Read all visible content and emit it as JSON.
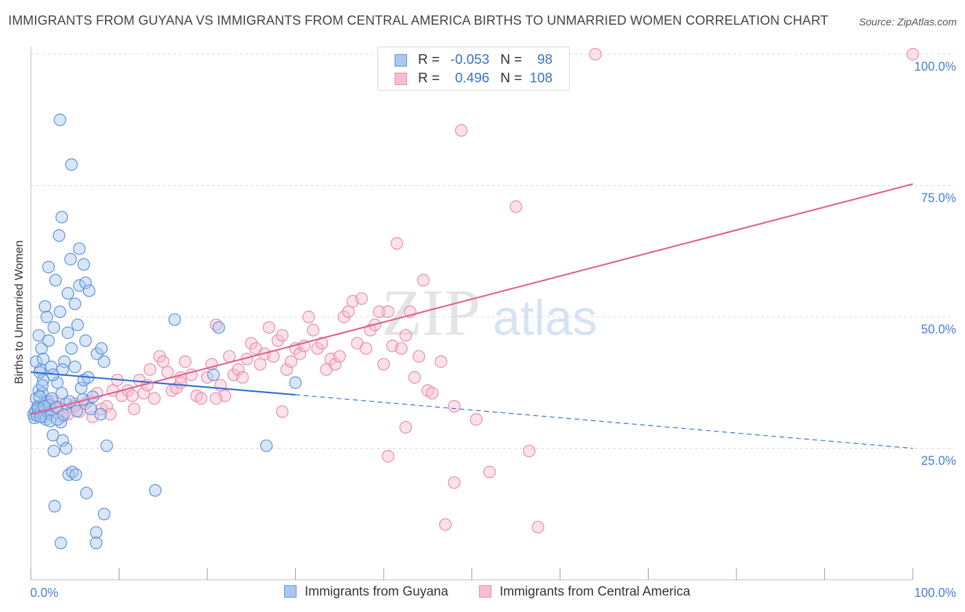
{
  "header": {
    "title": "IMMIGRANTS FROM GUYANA VS IMMIGRANTS FROM CENTRAL AMERICA BIRTHS TO UNMARRIED WOMEN CORRELATION CHART",
    "source": "Source: ZipAtlas.com"
  },
  "watermark": {
    "part1": "ZIP",
    "part2": "atlas"
  },
  "colors": {
    "guyana_fill": "#a9c8f0",
    "guyana_stroke": "#5b8fd8",
    "guyana_line": "#2f6fcf",
    "central_fill": "#f6bfd0",
    "central_stroke": "#e88aa8",
    "central_line": "#e0608a",
    "tick_text": "#4a7fd0",
    "grid": "#d8d8d8"
  },
  "legend": {
    "rows": [
      {
        "r_label": "R =",
        "r_value": "-0.053",
        "n_label": "N =",
        "n_value": "98"
      },
      {
        "r_label": "R =",
        "r_value": "0.496",
        "n_label": "N =",
        "n_value": "108"
      }
    ]
  },
  "bottom_legend": {
    "guyana": "Immigrants from Guyana",
    "central": "Immigrants from Central America"
  },
  "chart_data": {
    "type": "scatter",
    "title": "IMMIGRANTS FROM GUYANA VS IMMIGRANTS FROM CENTRAL AMERICA BIRTHS TO UNMARRIED WOMEN CORRELATION CHART",
    "xlabel": "",
    "ylabel": "Births to Unmarried Women",
    "xlim": [
      0,
      100
    ],
    "ylim": [
      0,
      100
    ],
    "x_tick_labels": [
      "0.0%",
      "100.0%"
    ],
    "y_ticks": [
      25,
      50,
      75,
      100
    ],
    "y_tick_labels": [
      "25.0%",
      "50.0%",
      "75.0%",
      "100.0%"
    ],
    "grid": "horizontal dashed",
    "legend_placement": "top-center",
    "series": [
      {
        "name": "Immigrants from Guyana",
        "R": -0.053,
        "N": 98,
        "trend": {
          "x": [
            0,
            30,
            100
          ],
          "y": [
            39.5,
            35.2,
            25.0
          ],
          "solid_until": 30
        },
        "points": [
          [
            0.3,
            31.5
          ],
          [
            0.5,
            32.0
          ],
          [
            0.6,
            34.5
          ],
          [
            0.8,
            33.0
          ],
          [
            0.9,
            36.0
          ],
          [
            1.0,
            31.8
          ],
          [
            1.1,
            40.0
          ],
          [
            1.2,
            32.5
          ],
          [
            1.3,
            35.5
          ],
          [
            1.4,
            38.0
          ],
          [
            0.4,
            30.8
          ],
          [
            0.7,
            31.2
          ],
          [
            1.5,
            31.0
          ],
          [
            1.6,
            33.8
          ],
          [
            1.7,
            30.5
          ],
          [
            1.8,
            32.2
          ],
          [
            1.9,
            34.0
          ],
          [
            2.0,
            31.6
          ],
          [
            2.1,
            33.2
          ],
          [
            2.2,
            30.2
          ],
          [
            0.6,
            41.5
          ],
          [
            0.9,
            46.5
          ],
          [
            1.2,
            44.0
          ],
          [
            1.4,
            42.0
          ],
          [
            1.6,
            52.0
          ],
          [
            1.8,
            50.0
          ],
          [
            2.0,
            45.5
          ],
          [
            2.3,
            40.5
          ],
          [
            2.6,
            48.0
          ],
          [
            3.0,
            37.5
          ],
          [
            3.3,
            51.0
          ],
          [
            3.5,
            35.5
          ],
          [
            3.8,
            41.5
          ],
          [
            4.2,
            47.0
          ],
          [
            4.6,
            44.0
          ],
          [
            5.0,
            40.5
          ],
          [
            5.3,
            48.5
          ],
          [
            5.7,
            36.5
          ],
          [
            6.0,
            38.0
          ],
          [
            6.2,
            45.5
          ],
          [
            2.0,
            59.5
          ],
          [
            2.8,
            57.0
          ],
          [
            3.2,
            65.5
          ],
          [
            3.5,
            69.0
          ],
          [
            4.2,
            54.5
          ],
          [
            4.5,
            61.0
          ],
          [
            5.0,
            52.5
          ],
          [
            5.5,
            56.0
          ],
          [
            6.2,
            56.5
          ],
          [
            6.6,
            55.0
          ],
          [
            3.3,
            87.5
          ],
          [
            4.6,
            79.0
          ],
          [
            5.5,
            63.0
          ],
          [
            6.0,
            60.0
          ],
          [
            7.5,
            43.0
          ],
          [
            8.0,
            44.0
          ],
          [
            8.3,
            41.5
          ],
          [
            1.0,
            39.5
          ],
          [
            2.5,
            39.0
          ],
          [
            3.6,
            40.0
          ],
          [
            2.6,
            24.5
          ],
          [
            3.4,
            30.0
          ],
          [
            3.6,
            26.5
          ],
          [
            4.0,
            25.0
          ],
          [
            4.3,
            20.0
          ],
          [
            4.7,
            20.5
          ],
          [
            5.1,
            20.0
          ],
          [
            6.3,
            16.5
          ],
          [
            2.5,
            27.5
          ],
          [
            2.7,
            14.0
          ],
          [
            3.4,
            7.0
          ],
          [
            7.4,
            9.0
          ],
          [
            7.4,
            7.0
          ],
          [
            8.3,
            12.5
          ],
          [
            8.6,
            25.5
          ],
          [
            14.1,
            17.0
          ],
          [
            16.3,
            49.5
          ],
          [
            20.7,
            39.0
          ],
          [
            21.3,
            48.0
          ],
          [
            26.7,
            25.5
          ],
          [
            30.0,
            37.5
          ],
          [
            6.5,
            38.5
          ],
          [
            6.8,
            32.5
          ],
          [
            7.0,
            34.8
          ],
          [
            7.9,
            31.5
          ],
          [
            4.0,
            33.5
          ],
          [
            3.0,
            30.5
          ],
          [
            2.4,
            34.5
          ],
          [
            1.3,
            37.0
          ],
          [
            1.0,
            34.8
          ],
          [
            0.8,
            32.6
          ],
          [
            1.1,
            31.0
          ],
          [
            1.5,
            33.0
          ],
          [
            2.9,
            32.8
          ],
          [
            3.7,
            31.4
          ],
          [
            4.4,
            33.9
          ],
          [
            5.2,
            32.1
          ],
          [
            5.9,
            34.3
          ]
        ]
      },
      {
        "name": "Immigrants from Central America",
        "R": 0.496,
        "N": 108,
        "trend": {
          "x": [
            0,
            100
          ],
          "y": [
            31.5,
            75.3
          ]
        },
        "points": [
          [
            1.2,
            33.0
          ],
          [
            1.8,
            32.0
          ],
          [
            2.4,
            34.0
          ],
          [
            3.0,
            33.0
          ],
          [
            3.5,
            32.5
          ],
          [
            4.2,
            31.5
          ],
          [
            5.0,
            33.5
          ],
          [
            5.5,
            32.0
          ],
          [
            6.2,
            33.5
          ],
          [
            7.0,
            31.0
          ],
          [
            7.5,
            35.5
          ],
          [
            8.0,
            32.5
          ],
          [
            8.6,
            33.0
          ],
          [
            9.3,
            36.0
          ],
          [
            9.8,
            38.0
          ],
          [
            10.3,
            35.0
          ],
          [
            11.0,
            36.0
          ],
          [
            11.7,
            32.5
          ],
          [
            12.3,
            38.0
          ],
          [
            12.8,
            35.5
          ],
          [
            13.2,
            37.0
          ],
          [
            13.5,
            40.0
          ],
          [
            14.0,
            34.5
          ],
          [
            14.6,
            42.5
          ],
          [
            15.0,
            41.5
          ],
          [
            15.5,
            39.5
          ],
          [
            16.0,
            36.0
          ],
          [
            16.5,
            36.5
          ],
          [
            17.0,
            38.5
          ],
          [
            17.5,
            41.5
          ],
          [
            18.2,
            39.0
          ],
          [
            18.8,
            35.0
          ],
          [
            19.3,
            34.5
          ],
          [
            20.0,
            38.5
          ],
          [
            20.5,
            41.0
          ],
          [
            21.0,
            48.5
          ],
          [
            21.5,
            37.0
          ],
          [
            22.0,
            35.0
          ],
          [
            22.5,
            42.5
          ],
          [
            23.0,
            39.0
          ],
          [
            23.5,
            40.0
          ],
          [
            24.0,
            38.5
          ],
          [
            24.5,
            42.0
          ],
          [
            25.0,
            45.0
          ],
          [
            25.5,
            44.0
          ],
          [
            26.0,
            41.0
          ],
          [
            26.5,
            43.0
          ],
          [
            27.0,
            48.0
          ],
          [
            27.5,
            42.5
          ],
          [
            28.0,
            45.5
          ],
          [
            28.5,
            46.5
          ],
          [
            29.0,
            40.0
          ],
          [
            29.5,
            41.5
          ],
          [
            30.0,
            44.0
          ],
          [
            30.5,
            43.0
          ],
          [
            31.0,
            44.5
          ],
          [
            31.5,
            50.0
          ],
          [
            32.0,
            47.5
          ],
          [
            32.5,
            44.0
          ],
          [
            33.0,
            45.0
          ],
          [
            33.5,
            40.0
          ],
          [
            34.0,
            42.0
          ],
          [
            34.5,
            41.0
          ],
          [
            35.0,
            42.5
          ],
          [
            35.5,
            50.0
          ],
          [
            36.0,
            51.0
          ],
          [
            36.5,
            53.0
          ],
          [
            37.0,
            45.0
          ],
          [
            37.5,
            53.5
          ],
          [
            38.0,
            44.0
          ],
          [
            38.5,
            47.5
          ],
          [
            39.0,
            48.5
          ],
          [
            39.5,
            51.0
          ],
          [
            40.0,
            41.0
          ],
          [
            40.5,
            51.0
          ],
          [
            41.0,
            44.5
          ],
          [
            41.5,
            64.0
          ],
          [
            42.0,
            44.0
          ],
          [
            42.5,
            46.5
          ],
          [
            43.0,
            51.0
          ],
          [
            43.5,
            38.5
          ],
          [
            44.0,
            42.5
          ],
          [
            44.5,
            57.0
          ],
          [
            45.0,
            36.0
          ],
          [
            45.5,
            35.5
          ],
          [
            46.5,
            41.5
          ],
          [
            48.0,
            33.0
          ],
          [
            48.8,
            85.5
          ],
          [
            50.5,
            30.5
          ],
          [
            52.0,
            20.5
          ],
          [
            55.0,
            71.0
          ],
          [
            56.5,
            24.5
          ],
          [
            57.5,
            10.0
          ],
          [
            48.0,
            18.5
          ],
          [
            47.0,
            10.5
          ],
          [
            42.5,
            29.0
          ],
          [
            40.5,
            23.5
          ],
          [
            28.5,
            32.0
          ],
          [
            21.0,
            34.5
          ],
          [
            17.0,
            37.5
          ],
          [
            11.5,
            35.0
          ],
          [
            9.0,
            31.5
          ],
          [
            6.5,
            34.0
          ],
          [
            5.0,
            33.0
          ],
          [
            3.5,
            31.0
          ],
          [
            59.0,
            100.0
          ],
          [
            64.0,
            100.0
          ],
          [
            100.0,
            100.0
          ]
        ]
      }
    ]
  }
}
